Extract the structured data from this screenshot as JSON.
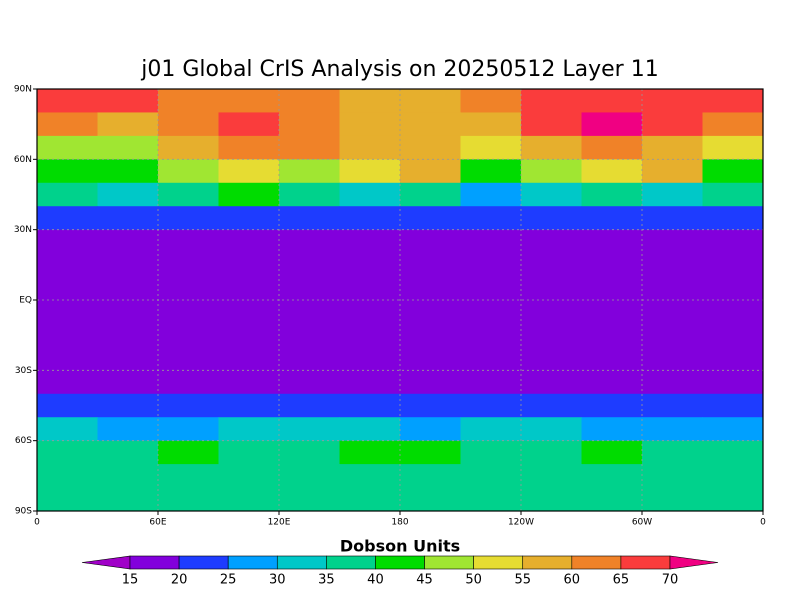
{
  "map": {
    "title": "j01 Global CrIS Analysis on 20250512 Layer 11",
    "xlim": [
      0,
      360
    ],
    "ylim": [
      -90,
      90
    ],
    "xticks": [
      0,
      {
        "value": 60,
        "label": "60E"
      },
      {
        "value": 120,
        "label": "120E"
      },
      180,
      {
        "value": 240,
        "label": "120W"
      },
      {
        "value": 300,
        "label": "60W"
      },
      {
        "value": 360,
        "label": "0"
      }
    ],
    "yticks": [
      {
        "value": 90,
        "label": "90N"
      },
      {
        "value": 60,
        "label": "60N"
      },
      {
        "value": 30,
        "label": "30N"
      },
      {
        "value": 0,
        "label": "EQ"
      },
      {
        "value": -30,
        "label": "30S"
      },
      {
        "value": -60,
        "label": "60S"
      },
      {
        "value": -90,
        "label": "90S"
      }
    ],
    "grid": true,
    "field": {
      "values": [
        [
          68,
          66,
          62,
          62,
          60,
          58,
          57,
          60,
          66,
          68,
          68,
          68
        ],
        [
          62,
          55,
          62,
          68,
          62,
          58,
          55,
          55,
          68,
          70,
          66,
          60
        ],
        [
          48,
          45,
          55,
          60,
          62,
          57,
          58,
          50,
          55,
          62,
          58,
          50
        ],
        [
          42,
          44,
          47,
          52,
          45,
          52,
          58,
          42,
          48,
          50,
          55,
          42
        ],
        [
          38,
          32,
          35,
          40,
          35,
          34,
          38,
          27,
          33,
          38,
          30,
          35
        ],
        [
          22,
          22,
          22,
          24,
          24,
          22,
          24,
          22,
          22,
          20,
          22,
          22
        ],
        [
          17,
          17,
          17,
          17,
          17,
          17,
          17,
          17,
          17,
          17,
          17,
          17
        ],
        [
          17,
          17,
          17,
          17,
          17,
          17,
          17,
          17,
          17,
          17,
          17,
          17
        ],
        [
          17,
          17,
          17,
          17,
          17,
          17,
          17,
          17,
          17,
          17,
          17,
          17
        ],
        [
          17,
          17,
          17,
          17,
          17,
          17,
          17,
          17,
          17,
          17,
          17,
          17
        ],
        [
          17,
          17,
          17,
          17,
          17,
          17,
          17,
          17,
          17,
          17,
          17,
          17
        ],
        [
          17,
          17,
          17,
          17,
          17,
          17,
          17,
          17,
          17,
          17,
          17,
          17
        ],
        [
          18,
          18,
          18,
          18,
          18,
          18,
          18,
          18,
          18,
          18,
          18,
          18
        ],
        [
          23,
          22,
          20,
          22,
          22,
          20,
          23,
          22,
          22,
          20,
          22,
          23
        ],
        [
          33,
          27,
          27,
          30,
          30,
          32,
          28,
          30,
          30,
          28,
          28,
          28
        ],
        [
          35,
          35,
          42,
          38,
          36,
          40,
          42,
          36,
          36,
          40,
          36,
          35
        ],
        [
          38,
          38,
          38,
          37,
          38,
          36,
          36,
          38,
          38,
          38,
          38,
          38
        ],
        [
          36,
          36,
          36,
          36,
          36,
          36,
          36,
          36,
          36,
          36,
          36,
          36
        ]
      ]
    },
    "colorbar": {
      "title": "Dobson Units",
      "levels": [
        15,
        20,
        25,
        30,
        35,
        40,
        45,
        50,
        55,
        60,
        65,
        70
      ],
      "colors": [
        "#a000c8",
        "#8200dc",
        "#1e3cff",
        "#00a0ff",
        "#00c8c8",
        "#00d28c",
        "#00dc00",
        "#a0e632",
        "#e6dc32",
        "#e6af2d",
        "#f08228",
        "#fa3c3c",
        "#f00082"
      ]
    }
  }
}
